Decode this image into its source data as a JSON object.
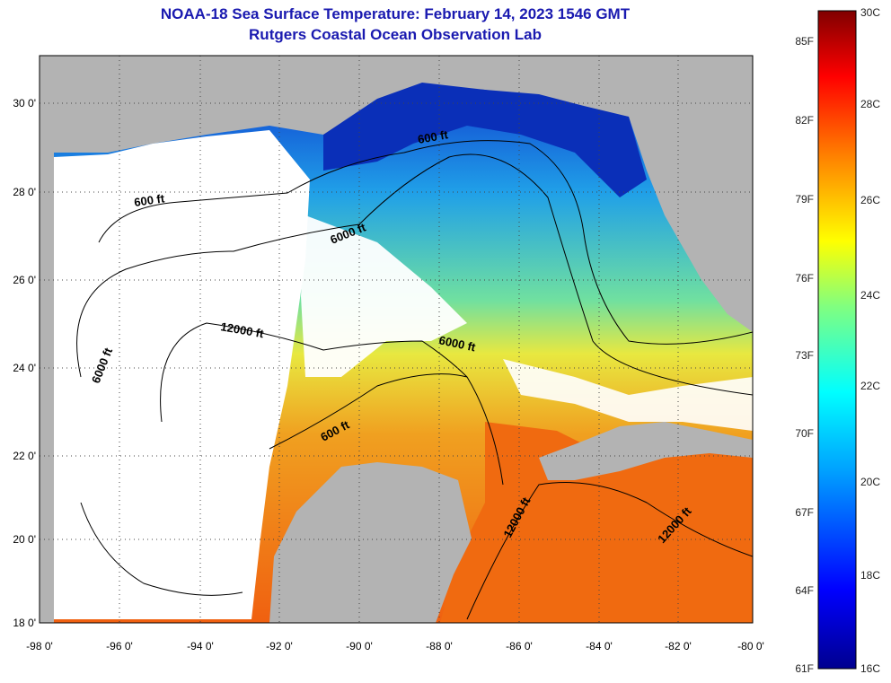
{
  "header": {
    "title": "NOAA-18 Sea Surface Temperature:  February 14, 2023 1546 GMT",
    "subtitle": "Rutgers Coastal Ocean Observation Lab"
  },
  "map": {
    "longitude_labels": [
      "-98 0'",
      "-96 0'",
      "-94 0'",
      "-92 0'",
      "-90 0'",
      "-88 0'",
      "-86 0'",
      "-84 0'",
      "-82 0'",
      "-80 0'"
    ],
    "latitude_labels": [
      "30 0'",
      "28 0'",
      "26 0'",
      "24 0'",
      "22 0'",
      "20 0'",
      "18 0'"
    ],
    "contour_labels": [
      "600 ft",
      "600 ft",
      "6000 ft",
      "6000 ft",
      "6000 ft",
      "12000 ft",
      "600 ft",
      "12000 ft",
      "12000 ft"
    ],
    "colors": {
      "land": "#b3b3b3",
      "cloud": "#ffffff",
      "cold": "#0a2fb8",
      "warm": "#f06a10"
    }
  },
  "colorbar": {
    "fahrenheit_labels": [
      "85F",
      "82F",
      "79F",
      "76F",
      "73F",
      "70F",
      "67F",
      "64F",
      "61F"
    ],
    "celsius_labels": [
      "30C",
      "28C",
      "26C",
      "24C",
      "22C",
      "20C",
      "18C",
      "16C"
    ]
  }
}
